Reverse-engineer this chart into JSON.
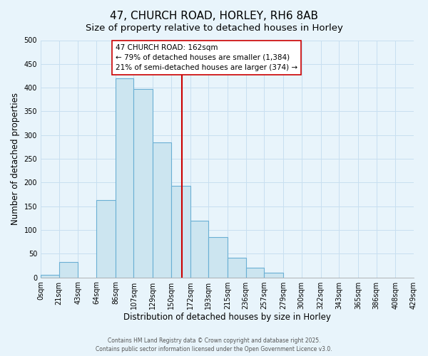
{
  "title": "47, CHURCH ROAD, HORLEY, RH6 8AB",
  "subtitle": "Size of property relative to detached houses in Horley",
  "xlabel": "Distribution of detached houses by size in Horley",
  "ylabel": "Number of detached properties",
  "bin_edges": [
    0,
    21,
    43,
    64,
    86,
    107,
    129,
    150,
    172,
    193,
    215,
    236,
    257,
    279,
    300,
    322,
    343,
    365,
    386,
    408,
    429
  ],
  "bin_labels": [
    "0sqm",
    "21sqm",
    "43sqm",
    "64sqm",
    "86sqm",
    "107sqm",
    "129sqm",
    "150sqm",
    "172sqm",
    "193sqm",
    "215sqm",
    "236sqm",
    "257sqm",
    "279sqm",
    "300sqm",
    "322sqm",
    "343sqm",
    "365sqm",
    "386sqm",
    "408sqm",
    "429sqm"
  ],
  "bar_heights": [
    5,
    32,
    0,
    163,
    420,
    397,
    284,
    193,
    120,
    85,
    42,
    20,
    10,
    0,
    0,
    0,
    0,
    0,
    0,
    0
  ],
  "bar_color": "#cce5f0",
  "bar_edge_color": "#6aafd4",
  "vline_x": 162,
  "vline_color": "#cc0000",
  "ylim": [
    0,
    500
  ],
  "yticks": [
    0,
    50,
    100,
    150,
    200,
    250,
    300,
    350,
    400,
    450,
    500
  ],
  "annotation_title": "47 CHURCH ROAD: 162sqm",
  "annotation_line1": "← 79% of detached houses are smaller (1,384)",
  "annotation_line2": "21% of semi-detached houses are larger (374) →",
  "annotation_box_color": "#ffffff",
  "annotation_box_edge": "#cc0000",
  "footer1": "Contains HM Land Registry data © Crown copyright and database right 2025.",
  "footer2": "Contains public sector information licensed under the Open Government Licence v3.0.",
  "grid_color": "#c8dff0",
  "background_color": "#e8f4fb",
  "title_fontsize": 11,
  "subtitle_fontsize": 9.5,
  "tick_fontsize": 7,
  "ylabel_fontsize": 8.5,
  "xlabel_fontsize": 8.5,
  "annotation_fontsize": 7.5,
  "footer_fontsize": 5.5
}
